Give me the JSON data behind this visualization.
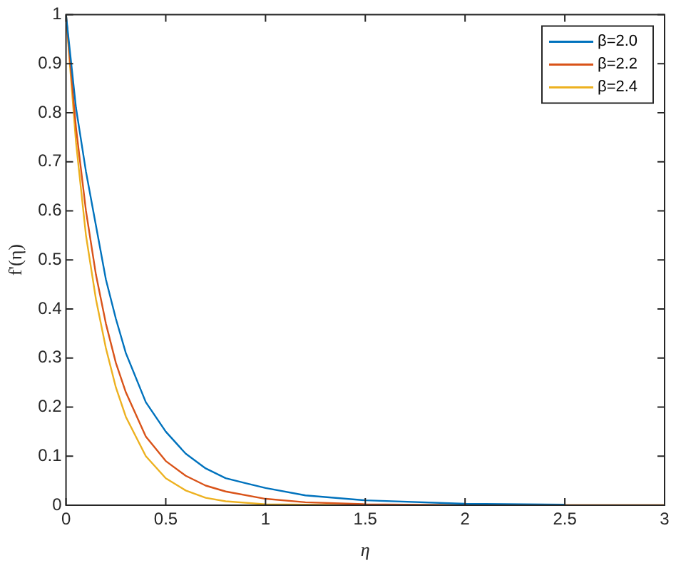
{
  "chart_data": {
    "type": "line",
    "xlabel": "η",
    "ylabel": "f'(η)",
    "xlim": [
      0,
      3
    ],
    "xticks": [
      0,
      0.5,
      1,
      1.5,
      2,
      2.5,
      3
    ],
    "ylim": [
      0,
      1
    ],
    "yticks": [
      0,
      0.1,
      0.2,
      0.3,
      0.4,
      0.5,
      0.6,
      0.7,
      0.8,
      0.9,
      1
    ],
    "grid": false,
    "legend": "top right",
    "marker": "none",
    "line_style": "solid",
    "series": [
      {
        "name": "β=2.0",
        "color": "#0072bd",
        "x": [
          0,
          0.05,
          0.1,
          0.15,
          0.2,
          0.25,
          0.3,
          0.4,
          0.5,
          0.6,
          0.7,
          0.8,
          0.9,
          1,
          1.2,
          1.5,
          2,
          2.5
        ],
        "values": [
          1,
          0.81,
          0.68,
          0.57,
          0.46,
          0.38,
          0.31,
          0.21,
          0.15,
          0.105,
          0.075,
          0.055,
          0.045,
          0.035,
          0.02,
          0.01,
          0.003,
          0.001
        ]
      },
      {
        "name": "β=2.2",
        "color": "#d95319",
        "x": [
          0,
          0.05,
          0.1,
          0.15,
          0.2,
          0.25,
          0.3,
          0.4,
          0.5,
          0.6,
          0.7,
          0.8,
          1,
          1.2,
          1.5,
          2,
          3
        ],
        "values": [
          1,
          0.77,
          0.6,
          0.47,
          0.37,
          0.29,
          0.23,
          0.14,
          0.09,
          0.06,
          0.04,
          0.028,
          0.013,
          0.006,
          0.002,
          0,
          0
        ]
      },
      {
        "name": "β=2.4",
        "color": "#edb120",
        "x": [
          0,
          0.05,
          0.1,
          0.15,
          0.2,
          0.25,
          0.3,
          0.4,
          0.5,
          0.6,
          0.7,
          0.8,
          1,
          1.5,
          3
        ],
        "values": [
          1,
          0.74,
          0.55,
          0.42,
          0.32,
          0.24,
          0.18,
          0.1,
          0.055,
          0.03,
          0.015,
          0.008,
          0.002,
          0,
          0
        ]
      }
    ]
  }
}
